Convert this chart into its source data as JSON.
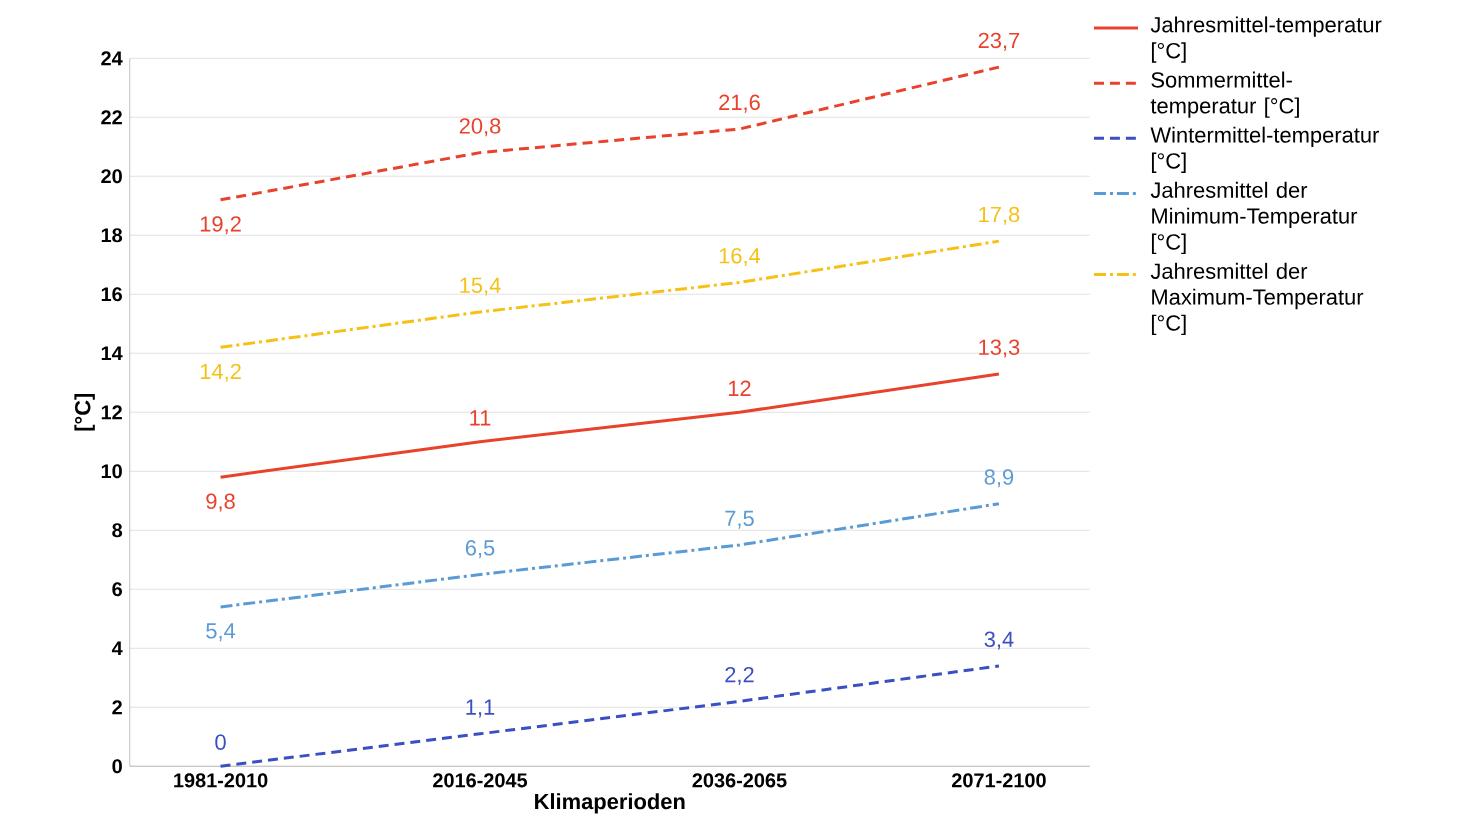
{
  "chart_data": {
    "type": "line",
    "xlabel": "Klimaperioden",
    "ylabel": "[°C]",
    "categories": [
      "1981-2010",
      "2016-2045",
      "2036-2065",
      "2071-2100"
    ],
    "ylim": [
      0,
      24
    ],
    "yticks": [
      0,
      2,
      4,
      6,
      8,
      10,
      12,
      14,
      16,
      18,
      20,
      22,
      24
    ],
    "grid": "y",
    "legend": "right",
    "marker": "none",
    "series": [
      {
        "name": "Jahresmittel-temperatur [°C]",
        "color": "#e8412c",
        "line_style": "solid",
        "values": [
          9.8,
          11,
          12,
          13.3
        ],
        "value_labels": [
          "9,8",
          "11",
          "12",
          "13,3"
        ]
      },
      {
        "name": "Sommermittel-temperatur [°C]",
        "color": "#e8412c",
        "line_style": "dashed",
        "values": [
          19.2,
          20.8,
          21.6,
          23.7
        ],
        "value_labels": [
          "19,2",
          "20,8",
          "21,6",
          "23,7"
        ]
      },
      {
        "name": "Wintermittel-temperatur [°C]",
        "color": "#3a4fc1",
        "line_style": "dashed",
        "values": [
          0,
          1.1,
          2.2,
          3.4
        ],
        "value_labels": [
          "0",
          "1,1",
          "2,2",
          "3,4"
        ]
      },
      {
        "name": "Jahresmittel der Minimum-Temperatur [°C]",
        "color": "#5b9bd5",
        "line_style": "dashdot",
        "values": [
          5.4,
          6.5,
          7.5,
          8.9
        ],
        "value_labels": [
          "5,4",
          "6,5",
          "7,5",
          "8,9"
        ]
      },
      {
        "name": "Jahresmittel der Maximum-Temperatur [°C]",
        "color": "#f5c116",
        "line_style": "dashdot",
        "values": [
          14.2,
          15.4,
          16.4,
          17.8
        ],
        "value_labels": [
          "14,2",
          "15,4",
          "16,4",
          "17,8"
        ]
      }
    ]
  }
}
